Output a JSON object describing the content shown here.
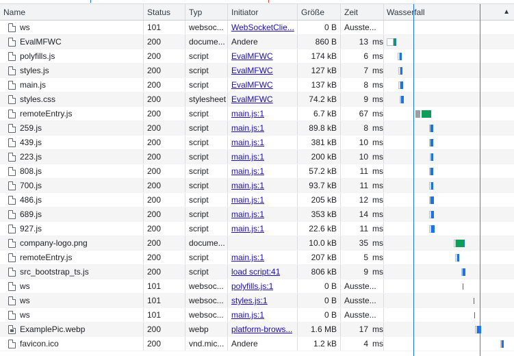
{
  "columns": {
    "name": "Name",
    "status": "Status",
    "type": "Typ",
    "initiator": "Initiator",
    "size": "Größe",
    "time": "Zeit",
    "waterfall": "Wasserfall",
    "sort_indicator": "▲"
  },
  "requests": [
    {
      "name": "ws",
      "icon": "document-icon",
      "status": "101",
      "type": "websoc...",
      "initiator": "WebSocketClie...",
      "initiator_link": true,
      "size": "0 B",
      "time": "Ausstehend",
      "time_display": "Ausste...",
      "unit": ""
    },
    {
      "name": "EvalMFWC",
      "icon": "document-icon",
      "status": "200",
      "type": "docume...",
      "initiator": "Andere",
      "initiator_link": false,
      "size": "860 B",
      "time_display": "13",
      "unit": "ms"
    },
    {
      "name": "polyfills.js",
      "icon": "document-icon",
      "status": "200",
      "type": "script",
      "initiator": "EvalMFWC",
      "initiator_link": true,
      "size": "174 kB",
      "time_display": "6",
      "unit": "ms"
    },
    {
      "name": "styles.js",
      "icon": "document-icon",
      "status": "200",
      "type": "script",
      "initiator": "EvalMFWC",
      "initiator_link": true,
      "size": "127 kB",
      "time_display": "7",
      "unit": "ms"
    },
    {
      "name": "main.js",
      "icon": "document-icon",
      "status": "200",
      "type": "script",
      "initiator": "EvalMFWC",
      "initiator_link": true,
      "size": "137 kB",
      "time_display": "8",
      "unit": "ms"
    },
    {
      "name": "styles.css",
      "icon": "document-icon",
      "status": "200",
      "type": "stylesheet",
      "initiator": "EvalMFWC",
      "initiator_link": true,
      "size": "74.2 kB",
      "time_display": "9",
      "unit": "ms"
    },
    {
      "name": "remoteEntry.js",
      "icon": "document-icon",
      "status": "200",
      "type": "script",
      "initiator": "main.js:1",
      "initiator_link": true,
      "size": "6.7 kB",
      "time_display": "67",
      "unit": "ms"
    },
    {
      "name": "259.js",
      "icon": "document-icon",
      "status": "200",
      "type": "script",
      "initiator": "main.js:1",
      "initiator_link": true,
      "size": "89.8 kB",
      "time_display": "8",
      "unit": "ms"
    },
    {
      "name": "439.js",
      "icon": "document-icon",
      "status": "200",
      "type": "script",
      "initiator": "main.js:1",
      "initiator_link": true,
      "size": "381 kB",
      "time_display": "10",
      "unit": "ms"
    },
    {
      "name": "223.js",
      "icon": "document-icon",
      "status": "200",
      "type": "script",
      "initiator": "main.js:1",
      "initiator_link": true,
      "size": "200 kB",
      "time_display": "10",
      "unit": "ms"
    },
    {
      "name": "808.js",
      "icon": "document-icon",
      "status": "200",
      "type": "script",
      "initiator": "main.js:1",
      "initiator_link": true,
      "size": "57.2 kB",
      "time_display": "11",
      "unit": "ms"
    },
    {
      "name": "700.js",
      "icon": "document-icon",
      "status": "200",
      "type": "script",
      "initiator": "main.js:1",
      "initiator_link": true,
      "size": "93.7 kB",
      "time_display": "11",
      "unit": "ms"
    },
    {
      "name": "486.js",
      "icon": "document-icon",
      "status": "200",
      "type": "script",
      "initiator": "main.js:1",
      "initiator_link": true,
      "size": "205 kB",
      "time_display": "12",
      "unit": "ms"
    },
    {
      "name": "689.js",
      "icon": "document-icon",
      "status": "200",
      "type": "script",
      "initiator": "main.js:1",
      "initiator_link": true,
      "size": "353 kB",
      "time_display": "14",
      "unit": "ms"
    },
    {
      "name": "927.js",
      "icon": "document-icon",
      "status": "200",
      "type": "script",
      "initiator": "main.js:1",
      "initiator_link": true,
      "size": "22.6 kB",
      "time_display": "11",
      "unit": "ms"
    },
    {
      "name": "company-logo.png",
      "icon": "document-icon",
      "status": "200",
      "type": "docume...",
      "initiator": "",
      "initiator_link": false,
      "size": "10.0 kB",
      "time_display": "35",
      "unit": "ms"
    },
    {
      "name": "remoteEntry.js",
      "icon": "document-icon",
      "status": "200",
      "type": "script",
      "initiator": "main.js:1",
      "initiator_link": true,
      "size": "207 kB",
      "time_display": "5",
      "unit": "ms"
    },
    {
      "name": "src_bootstrap_ts.js",
      "icon": "document-icon",
      "status": "200",
      "type": "script",
      "initiator": "load script:41",
      "initiator_link": true,
      "size": "806 kB",
      "time_display": "9",
      "unit": "ms"
    },
    {
      "name": "ws",
      "icon": "document-icon",
      "status": "101",
      "type": "websoc...",
      "initiator": "polyfills.js:1",
      "initiator_link": true,
      "size": "0 B",
      "time_display": "Ausste...",
      "unit": ""
    },
    {
      "name": "ws",
      "icon": "document-icon",
      "status": "101",
      "type": "websoc...",
      "initiator": "styles.js:1",
      "initiator_link": true,
      "size": "0 B",
      "time_display": "Ausste...",
      "unit": ""
    },
    {
      "name": "ws",
      "icon": "document-icon",
      "status": "101",
      "type": "websoc...",
      "initiator": "main.js:1",
      "initiator_link": true,
      "size": "0 B",
      "time_display": "Ausste...",
      "unit": ""
    },
    {
      "name": "ExamplePic.webp",
      "icon": "image-file-icon",
      "status": "200",
      "type": "webp",
      "initiator": "platform-brows...",
      "initiator_link": true,
      "size": "1.6 MB",
      "time_display": "17",
      "unit": "ms"
    },
    {
      "name": "favicon.ico",
      "icon": "document-icon",
      "status": "200",
      "type": "vnd.mic...",
      "initiator": "Andere",
      "initiator_link": false,
      "size": "1.2 kB",
      "time_display": "4",
      "unit": "ms"
    }
  ],
  "colors": {
    "dom_content_loaded_line": "#1a73e8",
    "load_line": "#e8453c",
    "ttfb": "#0f9d58",
    "download": "#1a73e8",
    "queue": "#9aa0a6",
    "link": "#1a0dab"
  }
}
